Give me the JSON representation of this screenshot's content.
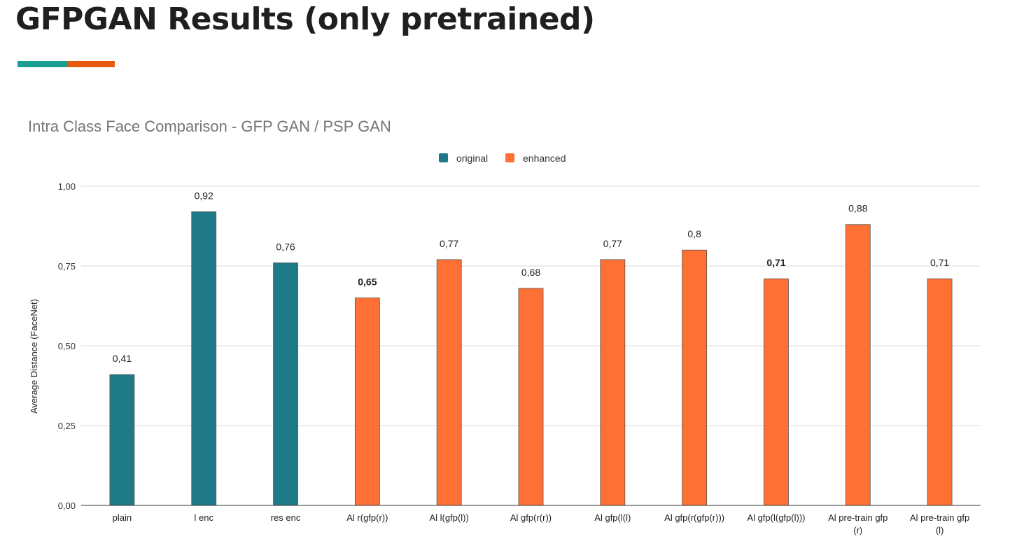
{
  "slide": {
    "title": "GFPGAN Results (only pretrained)",
    "accent_colors": [
      "#1a9e8f",
      "#e8590c"
    ]
  },
  "chart_data": {
    "type": "bar",
    "title": "Intra Class Face Comparison - GFP GAN / PSP GAN",
    "ylabel": "Average Distance (FaceNet)",
    "xlabel": "",
    "ylim": [
      0,
      1
    ],
    "yticks": [
      "0,00",
      "0,25",
      "0,50",
      "0,75",
      "1,00"
    ],
    "ytick_values": [
      0,
      0.25,
      0.5,
      0.75,
      1.0
    ],
    "grid": true,
    "legend_position": "top",
    "series": [
      {
        "name": "original",
        "color": "#1f7a87"
      },
      {
        "name": "enhanced",
        "color": "#ff7034"
      }
    ],
    "categories": [
      [
        "plain"
      ],
      [
        "l enc"
      ],
      [
        "res enc"
      ],
      [
        "Al r(gfp(r))"
      ],
      [
        "Al l(gfp(l))"
      ],
      [
        "Al gfp(r(r))"
      ],
      [
        "Al gfp(l(l)"
      ],
      [
        "Al gfp(r(gfp(r)))"
      ],
      [
        "Al gfp(l(gfp(l)))"
      ],
      [
        "Al pre-train gfp",
        "(r)"
      ],
      [
        "Al pre-train gfp",
        "(l)"
      ]
    ],
    "values": [
      0.41,
      0.92,
      0.76,
      0.65,
      0.77,
      0.68,
      0.77,
      0.8,
      0.71,
      0.88,
      0.71
    ],
    "value_labels": [
      "0,41",
      "0,92",
      "0,76",
      "0,65",
      "0,77",
      "0,68",
      "0,77",
      "0,8",
      "0,71",
      "0,88",
      "0,71"
    ],
    "bar_series": [
      "original",
      "original",
      "original",
      "enhanced",
      "enhanced",
      "enhanced",
      "enhanced",
      "enhanced",
      "enhanced",
      "enhanced",
      "enhanced"
    ],
    "bold_labels": [
      false,
      false,
      false,
      true,
      false,
      false,
      false,
      false,
      true,
      false,
      false
    ]
  }
}
